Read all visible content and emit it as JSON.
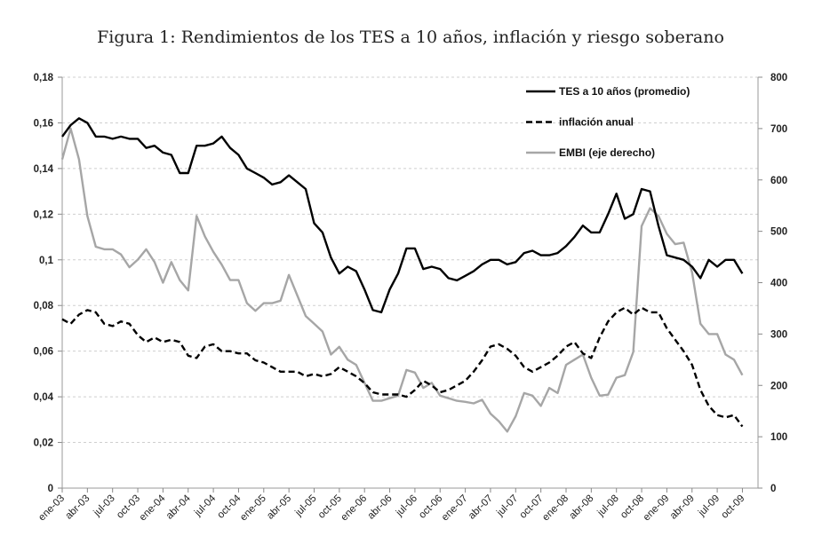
{
  "chart_data": {
    "type": "line",
    "title": "Figura 1: Rendimientos de los TES a 10 años, inflación y riesgo soberano",
    "x_tick_labels": [
      "ene-03",
      "abr-03",
      "jul-03",
      "oct-03",
      "ene-04",
      "abr-04",
      "jul-04",
      "oct-04",
      "ene-05",
      "abr-05",
      "jul-05",
      "oct-05",
      "ene-06",
      "abr-06",
      "jul-06",
      "oct-06",
      "ene-07",
      "abr-07",
      "jul-07",
      "oct-07",
      "ene-08",
      "abr-08",
      "jul-08",
      "oct-08",
      "ene-09",
      "abr-09",
      "jul-09",
      "oct-09"
    ],
    "x_range": [
      "ene-03",
      "oct-09"
    ],
    "x_frequency": "monthly",
    "y_left": {
      "ylim": [
        0,
        0.18
      ],
      "ticks": [
        "0",
        "0,02",
        "0,04",
        "0,06",
        "0,08",
        "0,1",
        "0,12",
        "0,14",
        "0,16",
        "0,18"
      ]
    },
    "y_right": {
      "ylim": [
        0,
        800
      ],
      "ticks": [
        "0",
        "100",
        "200",
        "300",
        "400",
        "500",
        "600",
        "700",
        "800"
      ]
    },
    "grid": "horizontal dashed",
    "legend_placement": "top-right",
    "series": [
      {
        "name": "TES a 10 años (promedio)",
        "axis": "left",
        "style": "solid",
        "color": "#000000",
        "values": [
          0.154,
          0.159,
          0.162,
          0.16,
          0.154,
          0.154,
          0.153,
          0.154,
          0.153,
          0.153,
          0.149,
          0.15,
          0.147,
          0.146,
          0.138,
          0.138,
          0.15,
          0.15,
          0.151,
          0.154,
          0.149,
          0.146,
          0.14,
          0.138,
          0.136,
          0.133,
          0.134,
          0.137,
          0.134,
          0.131,
          0.116,
          0.112,
          0.101,
          0.094,
          0.097,
          0.095,
          0.087,
          0.078,
          0.077,
          0.087,
          0.094,
          0.105,
          0.105,
          0.096,
          0.097,
          0.096,
          0.092,
          0.091,
          0.093,
          0.095,
          0.098,
          0.1,
          0.1,
          0.098,
          0.099,
          0.103,
          0.104,
          0.102,
          0.102,
          0.103,
          0.106,
          0.11,
          0.115,
          0.112,
          0.112,
          0.12,
          0.129,
          0.118,
          0.12,
          0.131,
          0.13,
          0.115,
          0.102,
          0.101,
          0.1,
          0.097,
          0.092,
          0.1,
          0.097,
          0.1,
          0.1,
          0.094
        ]
      },
      {
        "name": "inflación anual",
        "axis": "left",
        "style": "dashed",
        "color": "#000000",
        "values": [
          0.074,
          0.072,
          0.076,
          0.078,
          0.077,
          0.072,
          0.071,
          0.073,
          0.072,
          0.067,
          0.064,
          0.066,
          0.064,
          0.065,
          0.064,
          0.058,
          0.057,
          0.062,
          0.063,
          0.06,
          0.06,
          0.059,
          0.059,
          0.056,
          0.055,
          0.053,
          0.051,
          0.051,
          0.051,
          0.049,
          0.05,
          0.049,
          0.05,
          0.053,
          0.051,
          0.049,
          0.046,
          0.042,
          0.041,
          0.041,
          0.041,
          0.04,
          0.043,
          0.047,
          0.045,
          0.042,
          0.043,
          0.045,
          0.047,
          0.051,
          0.056,
          0.062,
          0.063,
          0.061,
          0.058,
          0.053,
          0.051,
          0.053,
          0.055,
          0.058,
          0.062,
          0.064,
          0.059,
          0.057,
          0.066,
          0.073,
          0.077,
          0.079,
          0.076,
          0.079,
          0.077,
          0.077,
          0.07,
          0.065,
          0.06,
          0.054,
          0.043,
          0.036,
          0.032,
          0.031,
          0.032,
          0.027
        ]
      },
      {
        "name": "EMBI (eje derecho)",
        "axis": "right",
        "style": "solid",
        "color": "#a6a6a6",
        "values": [
          640,
          700,
          640,
          530,
          470,
          465,
          465,
          455,
          430,
          445,
          465,
          440,
          400,
          440,
          405,
          385,
          530,
          490,
          460,
          435,
          405,
          405,
          360,
          345,
          360,
          360,
          365,
          415,
          375,
          335,
          320,
          305,
          260,
          275,
          250,
          240,
          205,
          170,
          170,
          175,
          180,
          230,
          225,
          195,
          205,
          180,
          175,
          170,
          168,
          165,
          172,
          145,
          130,
          110,
          140,
          185,
          180,
          160,
          195,
          185,
          240,
          250,
          260,
          215,
          180,
          182,
          215,
          220,
          265,
          510,
          545,
          530,
          495,
          475,
          478,
          420,
          320,
          300,
          300,
          260,
          250,
          220
        ]
      }
    ]
  }
}
